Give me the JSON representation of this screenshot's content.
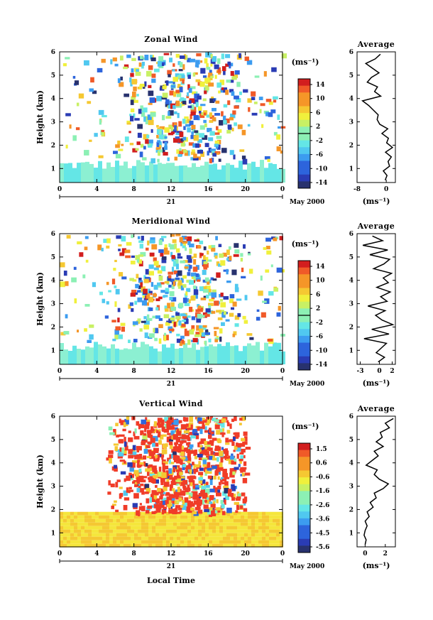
{
  "figure": {
    "panels": [
      {
        "title": "Zonal Wind",
        "ylabel": "Height (km)",
        "cbar_unit": "(ms⁻¹)",
        "avg_title": "Average",
        "avg_xlabel": "(ms⁻¹)",
        "date_label": "May 2000",
        "day_label": "21"
      },
      {
        "title": "Meridional Wind",
        "ylabel": "Height (km)",
        "cbar_unit": "(ms⁻¹)",
        "avg_title": "Average",
        "avg_xlabel": "(ms⁻¹)",
        "date_label": "May 2000",
        "day_label": "21"
      },
      {
        "title": "Vertical Wind",
        "ylabel": "Height (km)",
        "cbar_unit": "(ms⁻¹)",
        "avg_title": "Average",
        "avg_xlabel": "(ms⁻¹)",
        "date_label": "May 2000",
        "day_label": "21"
      }
    ],
    "xlabel": "Local Time"
  },
  "chart_data": [
    {
      "type": "heatmap",
      "title": "Zonal Wind",
      "ylabel": "Height (km)",
      "xlabel": "",
      "x_ticks": [
        "0",
        "4",
        "8",
        "12",
        "16",
        "20",
        "0"
      ],
      "xlim": [
        0,
        24
      ],
      "y_ticks": [
        "1",
        "2",
        "3",
        "4",
        "5",
        "6"
      ],
      "ylim": [
        0.4,
        6
      ],
      "colorbar": {
        "unit": "(ms⁻¹)",
        "ticks": [
          "14",
          "10",
          "6",
          "2",
          "-2",
          "-6",
          "-10",
          "-14"
        ],
        "range": [
          -16,
          16
        ],
        "zero_line": true
      },
      "average_profile": {
        "title": "Average",
        "xlabel": "(ms⁻¹)",
        "x_ticks": [
          "-8",
          "0"
        ],
        "xlim": [
          -8,
          2.5
        ],
        "y_ticks": [
          "1",
          "2",
          "3",
          "4",
          "5",
          "6"
        ],
        "heights": [
          0.5,
          0.7,
          0.9,
          1.1,
          1.3,
          1.5,
          1.7,
          1.9,
          2.1,
          2.3,
          2.5,
          2.7,
          2.9,
          3.1,
          3.3,
          3.5,
          3.7,
          3.9,
          4.1,
          4.3,
          4.5,
          4.7,
          4.9,
          5.1,
          5.3,
          5.5,
          5.7,
          5.9
        ],
        "values": [
          -0.3,
          0.2,
          -0.8,
          0.9,
          0.5,
          1.4,
          -0.2,
          1.7,
          0.1,
          0.6,
          -1.2,
          0.4,
          -1.8,
          -2.5,
          -2.2,
          -3.5,
          -4.8,
          -6.5,
          -1.5,
          -3.2,
          -2.4,
          -5.2,
          -4.1,
          -2.0,
          -3.8,
          -5.6,
          -3.0,
          -1.6
        ]
      }
    },
    {
      "type": "heatmap",
      "title": "Meridional Wind",
      "ylabel": "Height (km)",
      "xlabel": "",
      "x_ticks": [
        "0",
        "4",
        "8",
        "12",
        "16",
        "20",
        "0"
      ],
      "xlim": [
        0,
        24
      ],
      "y_ticks": [
        "1",
        "2",
        "3",
        "4",
        "5",
        "6"
      ],
      "ylim": [
        0.4,
        6
      ],
      "colorbar": {
        "unit": "(ms⁻¹)",
        "ticks": [
          "14",
          "10",
          "6",
          "2",
          "-2",
          "-6",
          "-10",
          "-14"
        ],
        "range": [
          -16,
          16
        ],
        "zero_line": true
      },
      "average_profile": {
        "title": "Average",
        "xlabel": "(ms⁻¹)",
        "x_ticks": [
          "-3",
          "0",
          "2"
        ],
        "xlim": [
          -3.5,
          2.5
        ],
        "y_ticks": [
          "1",
          "2",
          "3",
          "4",
          "5",
          "6"
        ],
        "heights": [
          0.5,
          0.7,
          0.9,
          1.1,
          1.3,
          1.5,
          1.7,
          1.9,
          2.1,
          2.3,
          2.5,
          2.7,
          2.9,
          3.1,
          3.3,
          3.5,
          3.7,
          3.9,
          4.1,
          4.3,
          4.5,
          4.7,
          4.9,
          5.1,
          5.3,
          5.5,
          5.7,
          5.9
        ],
        "values": [
          -0.2,
          0.8,
          -0.5,
          0.3,
          1.1,
          -2.4,
          1.5,
          -1.2,
          2.1,
          0.4,
          -0.6,
          0.9,
          -1.8,
          1.2,
          0.2,
          1.7,
          -0.4,
          1.4,
          0.6,
          1.9,
          -0.9,
          0.7,
          1.6,
          -1.5,
          1.3,
          -2.6,
          0.5,
          -1.1
        ]
      }
    },
    {
      "type": "heatmap",
      "title": "Vertical Wind",
      "ylabel": "Height (km)",
      "xlabel": "Local Time",
      "x_ticks": [
        "0",
        "4",
        "8",
        "12",
        "16",
        "20",
        "0"
      ],
      "xlim": [
        0,
        24
      ],
      "y_ticks": [
        "1",
        "2",
        "3",
        "4",
        "5",
        "6"
      ],
      "ylim": [
        0.4,
        6
      ],
      "colorbar": {
        "unit": "(ms⁻¹)",
        "ticks": [
          "1.5",
          "0.6",
          "-0.6",
          "-1.6",
          "-2.6",
          "-3.6",
          "-4.5",
          "-5.6"
        ],
        "range": [
          -6,
          2
        ],
        "zero_line": false
      },
      "average_profile": {
        "title": "Average",
        "xlabel": "(ms⁻¹)",
        "x_ticks": [
          "0",
          "2"
        ],
        "xlim": [
          -0.8,
          3.0
        ],
        "y_ticks": [
          "1",
          "2",
          "3",
          "4",
          "5",
          "6"
        ],
        "heights": [
          0.5,
          0.7,
          0.9,
          1.1,
          1.3,
          1.5,
          1.7,
          1.9,
          2.1,
          2.3,
          2.5,
          2.7,
          2.9,
          3.1,
          3.3,
          3.5,
          3.7,
          3.9,
          4.1,
          4.3,
          4.5,
          4.7,
          4.9,
          5.1,
          5.3,
          5.5,
          5.7,
          5.9
        ],
        "values": [
          0.0,
          0.1,
          -0.1,
          0.0,
          0.2,
          0.0,
          0.4,
          0.2,
          0.8,
          0.5,
          1.1,
          0.9,
          1.8,
          2.3,
          1.4,
          0.9,
          1.2,
          0.1,
          0.7,
          1.3,
          0.9,
          1.8,
          1.1,
          1.7,
          1.5,
          2.4,
          2.0,
          2.8
        ]
      }
    }
  ]
}
